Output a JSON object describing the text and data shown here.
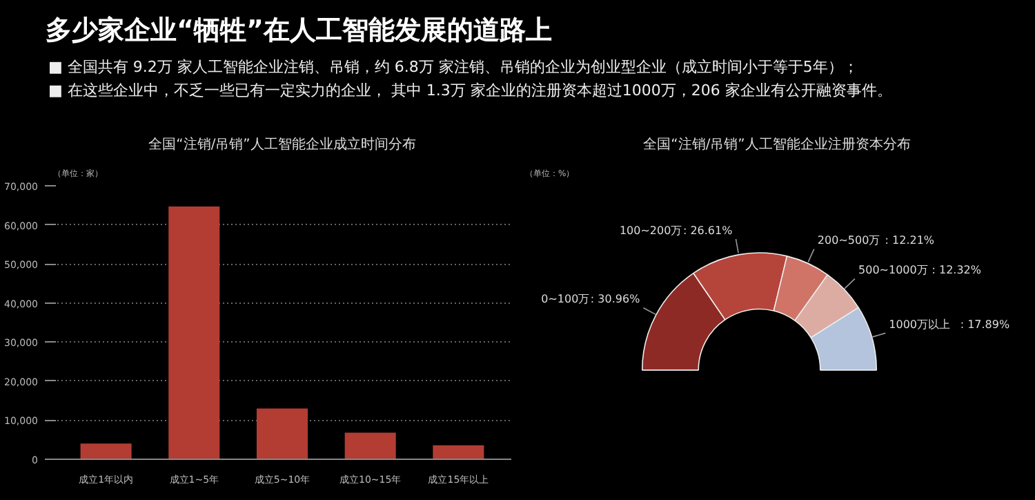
{
  "chart_data": [
    {
      "type": "bar",
      "title": "全国“注销/吊销”人工智能企业成立时间分布",
      "ylabel": "（单位：家）",
      "annotations": [
        "多少家企业“牺牲”在人工智能发展的道路上",
        "■ 全国共有 9.2万 家人工智能企业注销、吊销，约 6.8万 家注销、吊销的企业为创业型企业（成立时间小于等于5年）；",
        "■ 在这些企业中，不乏一些已有一定实力的企业， 其中 1.3万 家企业的注册资本超过1000万，206 家企业有公开融资事件。"
      ],
      "categories": [
        "成立1年以内",
        "成立1~5年",
        "成立5~10年",
        "成立10~15年",
        "成立15年以上"
      ],
      "values": [
        4000,
        64700,
        13000,
        6800,
        3600
      ],
      "color": "#b33d33",
      "ylim": [
        0,
        70000
      ],
      "yticks": [
        0,
        {
          "value": 10000,
          "label": "10,000"
        },
        {
          "value": 20000,
          "label": "20,000"
        },
        {
          "value": 30000,
          "label": "30,000"
        },
        {
          "value": 40000,
          "label": "40,000"
        },
        {
          "value": 50000,
          "label": "50,000"
        },
        {
          "value": 60000,
          "label": "60,000"
        },
        {
          "value": 70000,
          "label": "70,000"
        }
      ],
      "grid": "y"
    },
    {
      "type": "donut",
      "title": "全国“注销/吊销”人工智能企业注册资本分布",
      "ylabel": "（单位：%）",
      "categories": [
        "0~100万",
        "100~200万",
        "200~500万",
        "500~1000万",
        "1000万以上"
      ],
      "values": [
        30.96,
        26.61,
        12.21,
        12.32,
        17.89
      ],
      "colors": [
        "#8e2a25",
        "#b5443b",
        "#cf7467",
        "#dcaca3",
        "#b3c4dc"
      ],
      "value_labels": [
        ": 30.96%",
        ": 26.61%",
        ": 12.21%",
        ": 12.32%",
        ": 17.89%"
      ]
    }
  ]
}
